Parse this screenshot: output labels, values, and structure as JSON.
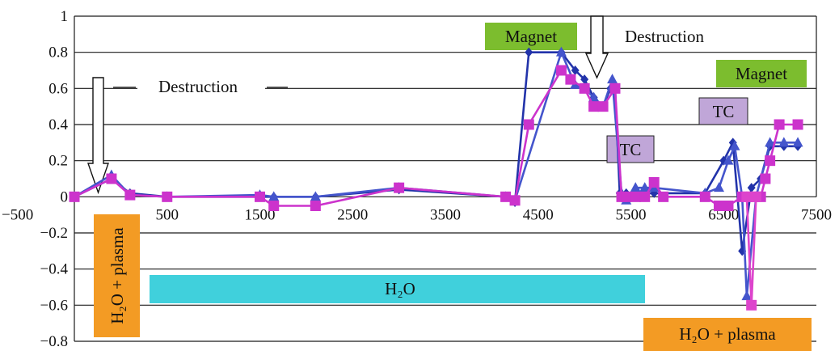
{
  "chart_data": {
    "type": "line",
    "title": "",
    "xlabel": "",
    "ylabel": "",
    "xlim": [
      -500,
      7500
    ],
    "ylim": [
      -0.8,
      1.0
    ],
    "x_ticks": [
      -500,
      500,
      1500,
      2500,
      3500,
      4500,
      5500,
      6500,
      7500
    ],
    "x_tick_labels": [
      "−500",
      "500",
      "1500",
      "2500",
      "3500",
      "4500",
      "5500",
      "6500",
      "7500"
    ],
    "y_ticks": [
      -0.8,
      -0.6,
      -0.4,
      -0.2,
      0,
      0.2,
      0.4,
      0.6,
      0.8,
      1
    ],
    "y_tick_labels": [
      "−0.8",
      "−0.6",
      "−0.4",
      "−0.2",
      "0",
      "0.2",
      "0.4",
      "0.6",
      "0.8",
      "1"
    ],
    "grid": "horizontal",
    "series": [
      {
        "color": "#2233aa",
        "marker": "diamond",
        "points": [
          [
            -500,
            0
          ],
          [
            -100,
            0.1
          ],
          [
            100,
            0.02
          ],
          [
            500,
            0
          ],
          [
            1500,
            0
          ],
          [
            1650,
            0
          ],
          [
            2100,
            0
          ],
          [
            3000,
            0.04
          ],
          [
            4150,
            0
          ],
          [
            4250,
            -0.03
          ],
          [
            4400,
            0.8
          ],
          [
            4750,
            0.8
          ],
          [
            4900,
            0.7
          ],
          [
            5000,
            0.65
          ],
          [
            5100,
            0.55
          ],
          [
            5200,
            0.5
          ],
          [
            5280,
            0.6
          ],
          [
            5330,
            0.6
          ],
          [
            5380,
            0.02
          ],
          [
            5450,
            0.02
          ],
          [
            5550,
            0.02
          ],
          [
            5650,
            0.02
          ],
          [
            5750,
            0.02
          ],
          [
            6300,
            0.02
          ],
          [
            6500,
            0.2
          ],
          [
            6600,
            0.3
          ],
          [
            6700,
            -0.3
          ],
          [
            6800,
            0.05
          ],
          [
            6900,
            0.1
          ],
          [
            7000,
            0.28
          ],
          [
            7150,
            0.28
          ],
          [
            7300,
            0.28
          ]
        ]
      },
      {
        "color": "#4455cc",
        "marker": "triangle",
        "points": [
          [
            -500,
            0
          ],
          [
            -100,
            0.12
          ],
          [
            100,
            0.01
          ],
          [
            500,
            0
          ],
          [
            1500,
            0.01
          ],
          [
            1650,
            0
          ],
          [
            2100,
            0
          ],
          [
            3000,
            0.05
          ],
          [
            4150,
            0
          ],
          [
            4250,
            -0.02
          ],
          [
            4750,
            0.8
          ],
          [
            4900,
            0.62
          ],
          [
            5000,
            0.6
          ],
          [
            5100,
            0.55
          ],
          [
            5200,
            0.5
          ],
          [
            5300,
            0.65
          ],
          [
            5400,
            0.02
          ],
          [
            5450,
            -0.02
          ],
          [
            5550,
            0.05
          ],
          [
            5650,
            0.05
          ],
          [
            5750,
            0.05
          ],
          [
            6300,
            0.02
          ],
          [
            6450,
            0.05
          ],
          [
            6550,
            0.2
          ],
          [
            6620,
            0.28
          ],
          [
            6700,
            0
          ],
          [
            6750,
            -0.55
          ],
          [
            6850,
            0
          ],
          [
            7000,
            0.3
          ],
          [
            7150,
            0.3
          ],
          [
            7300,
            0.3
          ]
        ]
      },
      {
        "color": "#cc33cc",
        "marker": "square",
        "points": [
          [
            -500,
            0
          ],
          [
            -100,
            0.1
          ],
          [
            100,
            0.01
          ],
          [
            500,
            0
          ],
          [
            1500,
            0
          ],
          [
            1650,
            -0.05
          ],
          [
            2100,
            -0.05
          ],
          [
            3000,
            0.05
          ],
          [
            4150,
            0
          ],
          [
            4250,
            -0.02
          ],
          [
            4400,
            0.4
          ],
          [
            4750,
            0.7
          ],
          [
            4850,
            0.65
          ],
          [
            5000,
            0.6
          ],
          [
            5100,
            0.5
          ],
          [
            5200,
            0.5
          ],
          [
            5330,
            0.6
          ],
          [
            5400,
            0
          ],
          [
            5450,
            0
          ],
          [
            5550,
            0
          ],
          [
            5650,
            0
          ],
          [
            5750,
            0.08
          ],
          [
            5850,
            0
          ],
          [
            6300,
            0
          ],
          [
            6450,
            -0.05
          ],
          [
            6550,
            -0.05
          ],
          [
            6700,
            0
          ],
          [
            6800,
            0
          ],
          [
            6900,
            0
          ],
          [
            6950,
            0.1
          ],
          [
            7000,
            0.2
          ],
          [
            7100,
            0.4
          ],
          [
            7300,
            0.4
          ]
        ]
      },
      {
        "color": "#dd44cc",
        "marker": "square",
        "points": [
          [
            6750,
            0
          ],
          [
            6800,
            -0.6
          ],
          [
            6850,
            0
          ]
        ]
      }
    ],
    "annotations": [
      {
        "text": "Destruction",
        "kind": "label"
      },
      {
        "text": "Destruction",
        "kind": "label"
      },
      {
        "text": "Magnet",
        "kind": "box",
        "fill": "#7cbd2e"
      },
      {
        "text": "Magnet",
        "kind": "box",
        "fill": "#7cbd2e"
      },
      {
        "text": "TC",
        "kind": "box",
        "fill": "#c0a6d8"
      },
      {
        "text": "TC",
        "kind": "box",
        "fill": "#c0a6d8"
      },
      {
        "text": "H₂O",
        "kind": "band",
        "fill": "#40d0dc"
      },
      {
        "text": "H₂O + plasma",
        "kind": "band",
        "fill": "#f39b24"
      },
      {
        "text": "H₂O + plasma",
        "kind": "box-vertical",
        "fill": "#f39b24"
      }
    ]
  }
}
